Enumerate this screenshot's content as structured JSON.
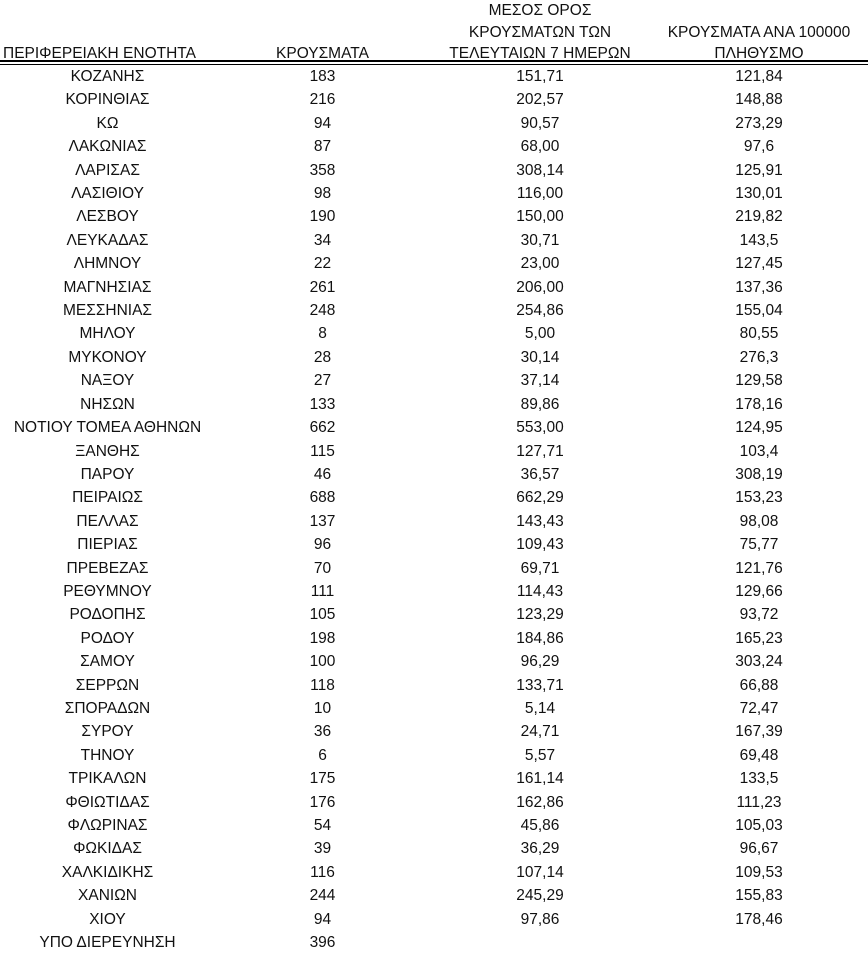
{
  "page": {
    "background_color": "#ffffff",
    "text_color": "#111111",
    "rule_color": "#000000"
  },
  "table": {
    "columns": [
      {
        "key": "region",
        "label": "ΠΕΡΙΦΕΡΕΙΑΚΗ ΕΝΟΤΗΤΑ"
      },
      {
        "key": "cases",
        "label": "ΚΡΟΥΣΜΑΤΑ"
      },
      {
        "key": "avg7",
        "label": "ΜΕΣΟΣ ΟΡΟΣ\nΚΡΟΥΣΜΑΤΩΝ ΤΩΝ\nΤΕΛΕΥΤΑΙΩΝ 7 ΗΜΕΡΩΝ"
      },
      {
        "key": "per100k",
        "label": "ΚΡΟΥΣΜΑΤΑ ΑΝΑ 100000\nΠΛΗΘΥΣΜΟ"
      }
    ],
    "rows": [
      [
        "ΚΟΖΑΝΗΣ",
        "183",
        "151,71",
        "121,84"
      ],
      [
        "ΚΟΡΙΝΘΙΑΣ",
        "216",
        "202,57",
        "148,88"
      ],
      [
        "ΚΩ",
        "94",
        "90,57",
        "273,29"
      ],
      [
        "ΛΑΚΩΝΙΑΣ",
        "87",
        "68,00",
        "97,6"
      ],
      [
        "ΛΑΡΙΣΑΣ",
        "358",
        "308,14",
        "125,91"
      ],
      [
        "ΛΑΣΙΘΙΟΥ",
        "98",
        "116,00",
        "130,01"
      ],
      [
        "ΛΕΣΒΟΥ",
        "190",
        "150,00",
        "219,82"
      ],
      [
        "ΛΕΥΚΑΔΑΣ",
        "34",
        "30,71",
        "143,5"
      ],
      [
        "ΛΗΜΝΟΥ",
        "22",
        "23,00",
        "127,45"
      ],
      [
        "ΜΑΓΝΗΣΙΑΣ",
        "261",
        "206,00",
        "137,36"
      ],
      [
        "ΜΕΣΣΗΝΙΑΣ",
        "248",
        "254,86",
        "155,04"
      ],
      [
        "ΜΗΛΟΥ",
        "8",
        "5,00",
        "80,55"
      ],
      [
        "ΜΥΚΟΝΟΥ",
        "28",
        "30,14",
        "276,3"
      ],
      [
        "ΝΑΞΟΥ",
        "27",
        "37,14",
        "129,58"
      ],
      [
        "ΝΗΣΩΝ",
        "133",
        "89,86",
        "178,16"
      ],
      [
        "ΝΟΤΙΟΥ ΤΟΜΕΑ ΑΘΗΝΩΝ",
        "662",
        "553,00",
        "124,95"
      ],
      [
        "ΞΑΝΘΗΣ",
        "115",
        "127,71",
        "103,4"
      ],
      [
        "ΠΑΡΟΥ",
        "46",
        "36,57",
        "308,19"
      ],
      [
        "ΠΕΙΡΑΙΩΣ",
        "688",
        "662,29",
        "153,23"
      ],
      [
        "ΠΕΛΛΑΣ",
        "137",
        "143,43",
        "98,08"
      ],
      [
        "ΠΙΕΡΙΑΣ",
        "96",
        "109,43",
        "75,77"
      ],
      [
        "ΠΡΕΒΕΖΑΣ",
        "70",
        "69,71",
        "121,76"
      ],
      [
        "ΡΕΘΥΜΝΟΥ",
        "111",
        "114,43",
        "129,66"
      ],
      [
        "ΡΟΔΟΠΗΣ",
        "105",
        "123,29",
        "93,72"
      ],
      [
        "ΡΟΔΟΥ",
        "198",
        "184,86",
        "165,23"
      ],
      [
        "ΣΑΜΟΥ",
        "100",
        "96,29",
        "303,24"
      ],
      [
        "ΣΕΡΡΩΝ",
        "118",
        "133,71",
        "66,88"
      ],
      [
        "ΣΠΟΡΑΔΩΝ",
        "10",
        "5,14",
        "72,47"
      ],
      [
        "ΣΥΡΟΥ",
        "36",
        "24,71",
        "167,39"
      ],
      [
        "ΤΗΝΟΥ",
        "6",
        "5,57",
        "69,48"
      ],
      [
        "ΤΡΙΚΑΛΩΝ",
        "175",
        "161,14",
        "133,5"
      ],
      [
        "ΦΘΙΩΤΙΔΑΣ",
        "176",
        "162,86",
        "111,23"
      ],
      [
        "ΦΛΩΡΙΝΑΣ",
        "54",
        "45,86",
        "105,03"
      ],
      [
        "ΦΩΚΙΔΑΣ",
        "39",
        "36,29",
        "96,67"
      ],
      [
        "ΧΑΛΚΙΔΙΚΗΣ",
        "116",
        "107,14",
        "109,53"
      ],
      [
        "ΧΑΝΙΩΝ",
        "244",
        "245,29",
        "155,83"
      ],
      [
        "ΧΙΟΥ",
        "94",
        "97,86",
        "178,46"
      ],
      [
        "ΥΠΟ ΔΙΕΡΕΥΝΗΣΗ",
        "396",
        "",
        ""
      ]
    ]
  }
}
